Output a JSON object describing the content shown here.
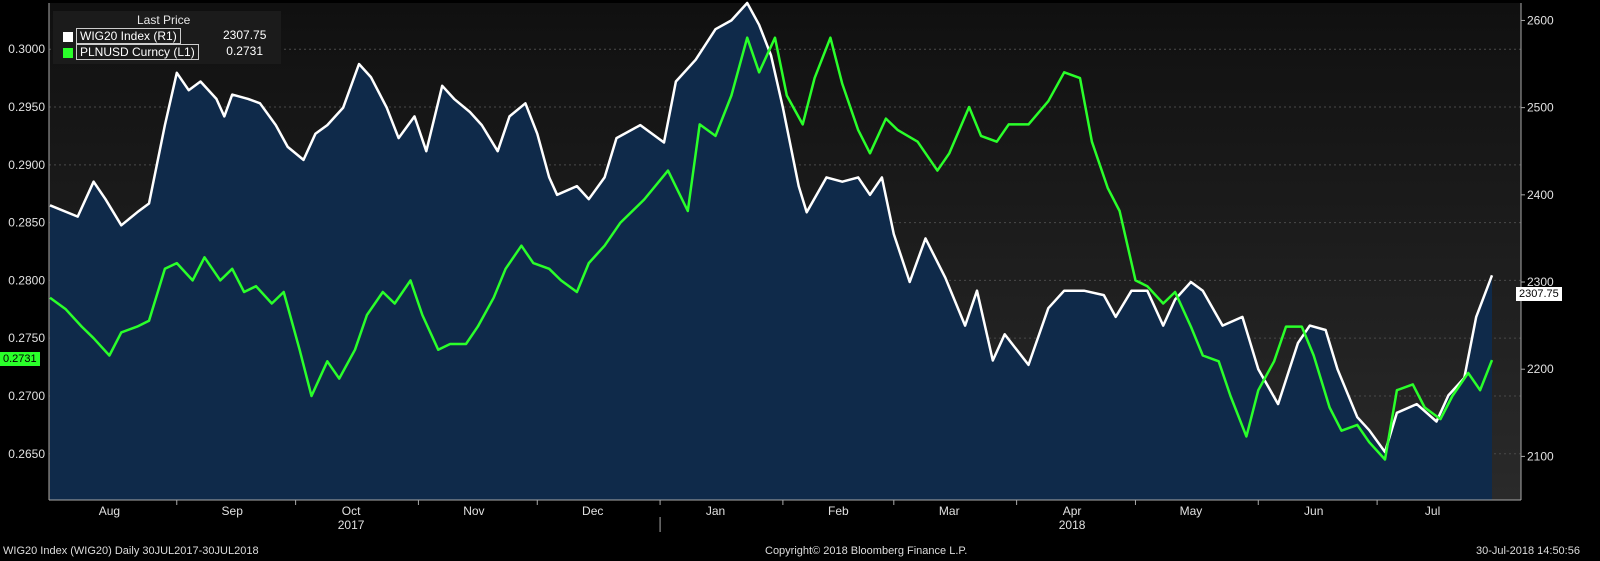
{
  "legend": {
    "header": "Last Price",
    "series": [
      {
        "name": "WIG20 Index  (R1)",
        "value": "2307.75",
        "color": "#ffffff"
      },
      {
        "name": "PLNUSD Curncy  (L1)",
        "value": "0.2731",
        "color": "#2aff2a"
      }
    ]
  },
  "footer": {
    "left": "WIG20 Index (WIG20)  Daily 30JUL2017-30JUL2018",
    "center": "Copyright© 2018 Bloomberg Finance L.P.",
    "right": "30-Jul-2018 14:50:56"
  },
  "last_tags": {
    "left": "0.2731",
    "right": "2307.75"
  },
  "chart_data": {
    "type": "line",
    "x_start": "2017-07-31",
    "x_end": "2018-07-30",
    "x_ticks": [
      "Aug",
      "Sep",
      "Oct",
      "Nov",
      "Dec",
      "Jan",
      "Feb",
      "Mar",
      "Apr",
      "May",
      "Jun",
      "Jul"
    ],
    "year_labels": [
      "2017",
      "2018"
    ],
    "left_axis": {
      "ticks": [
        "0.3000",
        "0.2950",
        "0.2900",
        "0.2850",
        "0.2800",
        "0.2750",
        "0.2700",
        "0.2650"
      ],
      "ylim": [
        0.261,
        0.304
      ]
    },
    "right_axis": {
      "ticks": [
        "2600",
        "2500",
        "2400",
        "2300",
        "2200",
        "2100"
      ],
      "ylim": [
        2050,
        2620
      ]
    },
    "series": [
      {
        "name": "WIG20 Index  (R1)",
        "axis": "right",
        "color": "#ffffff",
        "area_fill": "#0f2a4a",
        "points": [
          [
            "2017-07-31",
            2388
          ],
          [
            "2017-08-07",
            2375
          ],
          [
            "2017-08-11",
            2415
          ],
          [
            "2017-08-14",
            2395
          ],
          [
            "2017-08-18",
            2365
          ],
          [
            "2017-08-22",
            2380
          ],
          [
            "2017-08-25",
            2390
          ],
          [
            "2017-08-29",
            2480
          ],
          [
            "2017-09-01",
            2540
          ],
          [
            "2017-09-04",
            2520
          ],
          [
            "2017-09-07",
            2530
          ],
          [
            "2017-09-11",
            2510
          ],
          [
            "2017-09-13",
            2490
          ],
          [
            "2017-09-15",
            2515
          ],
          [
            "2017-09-19",
            2510
          ],
          [
            "2017-09-22",
            2505
          ],
          [
            "2017-09-26",
            2480
          ],
          [
            "2017-09-29",
            2455
          ],
          [
            "2017-10-03",
            2440
          ],
          [
            "2017-10-06",
            2470
          ],
          [
            "2017-10-09",
            2480
          ],
          [
            "2017-10-13",
            2500
          ],
          [
            "2017-10-17",
            2550
          ],
          [
            "2017-10-20",
            2535
          ],
          [
            "2017-10-24",
            2500
          ],
          [
            "2017-10-27",
            2465
          ],
          [
            "2017-10-31",
            2490
          ],
          [
            "2017-11-03",
            2450
          ],
          [
            "2017-11-07",
            2525
          ],
          [
            "2017-11-10",
            2510
          ],
          [
            "2017-11-14",
            2495
          ],
          [
            "2017-11-17",
            2480
          ],
          [
            "2017-11-21",
            2450
          ],
          [
            "2017-11-24",
            2490
          ],
          [
            "2017-11-28",
            2505
          ],
          [
            "2017-12-01",
            2470
          ],
          [
            "2017-12-04",
            2420
          ],
          [
            "2017-12-06",
            2400
          ],
          [
            "2017-12-11",
            2410
          ],
          [
            "2017-12-14",
            2395
          ],
          [
            "2017-12-18",
            2420
          ],
          [
            "2017-12-21",
            2465
          ],
          [
            "2017-12-27",
            2480
          ],
          [
            "2018-01-02",
            2460
          ],
          [
            "2018-01-05",
            2530
          ],
          [
            "2018-01-10",
            2555
          ],
          [
            "2018-01-15",
            2590
          ],
          [
            "2018-01-19",
            2600
          ],
          [
            "2018-01-23",
            2620
          ],
          [
            "2018-01-26",
            2595
          ],
          [
            "2018-01-29",
            2560
          ],
          [
            "2018-02-01",
            2500
          ],
          [
            "2018-02-05",
            2410
          ],
          [
            "2018-02-07",
            2380
          ],
          [
            "2018-02-12",
            2420
          ],
          [
            "2018-02-16",
            2415
          ],
          [
            "2018-02-20",
            2420
          ],
          [
            "2018-02-23",
            2400
          ],
          [
            "2018-02-26",
            2420
          ],
          [
            "2018-03-01",
            2355
          ],
          [
            "2018-03-05",
            2300
          ],
          [
            "2018-03-09",
            2350
          ],
          [
            "2018-03-14",
            2305
          ],
          [
            "2018-03-19",
            2250
          ],
          [
            "2018-03-22",
            2290
          ],
          [
            "2018-03-26",
            2210
          ],
          [
            "2018-03-29",
            2240
          ],
          [
            "2018-04-04",
            2205
          ],
          [
            "2018-04-09",
            2270
          ],
          [
            "2018-04-13",
            2290
          ],
          [
            "2018-04-18",
            2290
          ],
          [
            "2018-04-23",
            2285
          ],
          [
            "2018-04-26",
            2260
          ],
          [
            "2018-04-30",
            2290
          ],
          [
            "2018-05-04",
            2290
          ],
          [
            "2018-05-08",
            2250
          ],
          [
            "2018-05-11",
            2280
          ],
          [
            "2018-05-15",
            2300
          ],
          [
            "2018-05-18",
            2290
          ],
          [
            "2018-05-23",
            2250
          ],
          [
            "2018-05-28",
            2260
          ],
          [
            "2018-06-01",
            2200
          ],
          [
            "2018-06-06",
            2160
          ],
          [
            "2018-06-11",
            2230
          ],
          [
            "2018-06-14",
            2250
          ],
          [
            "2018-06-18",
            2245
          ],
          [
            "2018-06-21",
            2200
          ],
          [
            "2018-06-26",
            2145
          ],
          [
            "2018-06-29",
            2130
          ],
          [
            "2018-07-03",
            2105
          ],
          [
            "2018-07-06",
            2150
          ],
          [
            "2018-07-11",
            2160
          ],
          [
            "2018-07-16",
            2140
          ],
          [
            "2018-07-19",
            2170
          ],
          [
            "2018-07-23",
            2190
          ],
          [
            "2018-07-26",
            2260
          ],
          [
            "2018-07-30",
            2307.75
          ]
        ]
      },
      {
        "name": "PLNUSD Curncy  (L1)",
        "axis": "left",
        "color": "#2aff2a",
        "points": [
          [
            "2017-07-31",
            0.2785
          ],
          [
            "2017-08-04",
            0.2775
          ],
          [
            "2017-08-08",
            0.276
          ],
          [
            "2017-08-11",
            0.275
          ],
          [
            "2017-08-15",
            0.2735
          ],
          [
            "2017-08-18",
            0.2755
          ],
          [
            "2017-08-22",
            0.276
          ],
          [
            "2017-08-25",
            0.2765
          ],
          [
            "2017-08-29",
            0.281
          ],
          [
            "2017-09-01",
            0.2815
          ],
          [
            "2017-09-05",
            0.28
          ],
          [
            "2017-09-08",
            0.282
          ],
          [
            "2017-09-12",
            0.28
          ],
          [
            "2017-09-15",
            0.281
          ],
          [
            "2017-09-18",
            0.279
          ],
          [
            "2017-09-21",
            0.2795
          ],
          [
            "2017-09-25",
            0.278
          ],
          [
            "2017-09-28",
            0.279
          ],
          [
            "2017-10-02",
            0.274
          ],
          [
            "2017-10-05",
            0.27
          ],
          [
            "2017-10-09",
            0.273
          ],
          [
            "2017-10-12",
            0.2715
          ],
          [
            "2017-10-16",
            0.274
          ],
          [
            "2017-10-19",
            0.277
          ],
          [
            "2017-10-23",
            0.279
          ],
          [
            "2017-10-26",
            0.278
          ],
          [
            "2017-10-30",
            0.28
          ],
          [
            "2017-11-02",
            0.277
          ],
          [
            "2017-11-06",
            0.274
          ],
          [
            "2017-11-09",
            0.2745
          ],
          [
            "2017-11-13",
            0.2745
          ],
          [
            "2017-11-16",
            0.276
          ],
          [
            "2017-11-20",
            0.2785
          ],
          [
            "2017-11-23",
            0.281
          ],
          [
            "2017-11-27",
            0.283
          ],
          [
            "2017-11-30",
            0.2815
          ],
          [
            "2017-12-04",
            0.281
          ],
          [
            "2017-12-07",
            0.28
          ],
          [
            "2017-12-11",
            0.279
          ],
          [
            "2017-12-14",
            0.2815
          ],
          [
            "2017-12-18",
            0.283
          ],
          [
            "2017-12-22",
            0.285
          ],
          [
            "2017-12-28",
            0.287
          ],
          [
            "2018-01-03",
            0.2895
          ],
          [
            "2018-01-08",
            0.286
          ],
          [
            "2018-01-11",
            0.2935
          ],
          [
            "2018-01-15",
            0.2925
          ],
          [
            "2018-01-19",
            0.296
          ],
          [
            "2018-01-23",
            0.301
          ],
          [
            "2018-01-26",
            0.298
          ],
          [
            "2018-01-30",
            0.301
          ],
          [
            "2018-02-02",
            0.296
          ],
          [
            "2018-02-06",
            0.2935
          ],
          [
            "2018-02-09",
            0.2975
          ],
          [
            "2018-02-13",
            0.301
          ],
          [
            "2018-02-16",
            0.297
          ],
          [
            "2018-02-20",
            0.293
          ],
          [
            "2018-02-23",
            0.291
          ],
          [
            "2018-02-27",
            0.294
          ],
          [
            "2018-03-02",
            0.293
          ],
          [
            "2018-03-07",
            0.292
          ],
          [
            "2018-03-12",
            0.2895
          ],
          [
            "2018-03-15",
            0.291
          ],
          [
            "2018-03-20",
            0.295
          ],
          [
            "2018-03-23",
            0.2925
          ],
          [
            "2018-03-27",
            0.292
          ],
          [
            "2018-03-30",
            0.2935
          ],
          [
            "2018-04-04",
            0.2935
          ],
          [
            "2018-04-09",
            0.2955
          ],
          [
            "2018-04-13",
            0.298
          ],
          [
            "2018-04-17",
            0.2975
          ],
          [
            "2018-04-20",
            0.292
          ],
          [
            "2018-04-24",
            0.288
          ],
          [
            "2018-04-27",
            0.286
          ],
          [
            "2018-05-01",
            0.28
          ],
          [
            "2018-05-04",
            0.2795
          ],
          [
            "2018-05-08",
            0.278
          ],
          [
            "2018-05-11",
            0.279
          ],
          [
            "2018-05-15",
            0.276
          ],
          [
            "2018-05-18",
            0.2735
          ],
          [
            "2018-05-22",
            0.273
          ],
          [
            "2018-05-25",
            0.27
          ],
          [
            "2018-05-29",
            0.2665
          ],
          [
            "2018-06-01",
            0.2705
          ],
          [
            "2018-06-05",
            0.273
          ],
          [
            "2018-06-08",
            0.276
          ],
          [
            "2018-06-12",
            0.276
          ],
          [
            "2018-06-15",
            0.2735
          ],
          [
            "2018-06-19",
            0.269
          ],
          [
            "2018-06-22",
            0.267
          ],
          [
            "2018-06-26",
            0.2675
          ],
          [
            "2018-06-29",
            0.266
          ],
          [
            "2018-07-03",
            0.2645
          ],
          [
            "2018-07-06",
            0.2705
          ],
          [
            "2018-07-10",
            0.271
          ],
          [
            "2018-07-13",
            0.269
          ],
          [
            "2018-07-17",
            0.268
          ],
          [
            "2018-07-20",
            0.27
          ],
          [
            "2018-07-24",
            0.272
          ],
          [
            "2018-07-27",
            0.2705
          ],
          [
            "2018-07-30",
            0.2731
          ]
        ]
      }
    ]
  }
}
